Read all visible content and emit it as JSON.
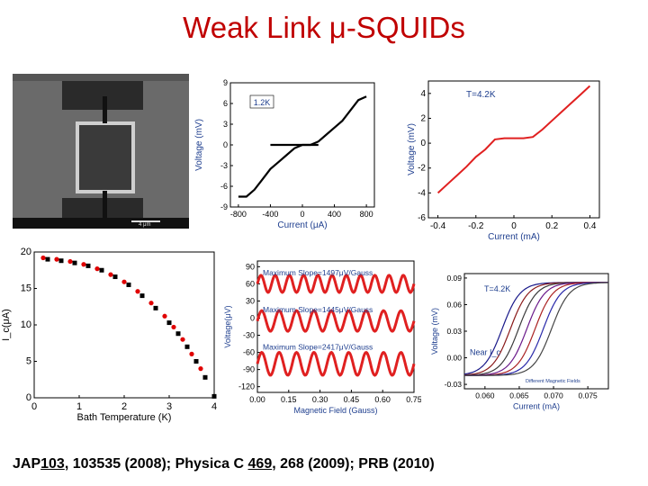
{
  "slide": {
    "title": "Weak Link μ-SQUIDs",
    "citation": {
      "part1": "JAP",
      "vol1": "103",
      "part2": ", 103535 (2008); Physica C ",
      "vol2": "469",
      "part3": ", 268 (2009); PRB (2010)"
    }
  },
  "sem_image": {
    "scale_bar_text": "4 μm"
  },
  "panels": [
    {
      "id": "iv-1.2K",
      "chart_data": {
        "type": "line",
        "legend": "1.2K",
        "xlabel": "Current (μA)",
        "ylabel": "Voltage (mV)",
        "xticks": [
          "-800",
          "-400",
          "0",
          "400",
          "800"
        ],
        "yticks": [
          "9",
          "6",
          "3",
          "0",
          "-3",
          "-6",
          "-9"
        ],
        "xlim": [
          -900,
          900
        ],
        "ylim": [
          -9,
          9
        ],
        "series": [
          {
            "x": [
              -800,
              -700,
              -600,
              -500,
              -400,
              -300,
              -200,
              -100,
              0,
              100,
              200,
              300,
              400,
              500,
              600,
              700,
              800
            ],
            "y": [
              -7.5,
              -7.5,
              -6.5,
              -5,
              -3.5,
              -2.5,
              -1.5,
              -0.5,
              0,
              0,
              0.5,
              1.5,
              2.5,
              3.5,
              5,
              6.5,
              7
            ]
          }
        ],
        "hline_y": 0
      }
    },
    {
      "id": "iv-4.2K",
      "chart_data": {
        "type": "line",
        "legend": "T=4.2K",
        "xlabel": "Current (mA)",
        "ylabel": "Voltage (mV)",
        "xticks": [
          "-0.4",
          "-0.2",
          "0",
          "0.2",
          "0.4"
        ],
        "yticks": [
          "4",
          "2",
          "0",
          "-2",
          "-4",
          "-6"
        ],
        "xlim": [
          -0.45,
          0.45
        ],
        "ylim": [
          -6,
          5
        ],
        "series": [
          {
            "x": [
              -0.4,
              -0.35,
              -0.3,
              -0.25,
              -0.2,
              -0.15,
              -0.1,
              -0.05,
              0,
              0.05,
              0.1,
              0.15,
              0.2,
              0.25,
              0.3,
              0.35,
              0.4
            ],
            "y": [
              -4,
              -3.3,
              -2.6,
              -1.9,
              -1.1,
              -0.5,
              0.3,
              0.4,
              0.4,
              0.4,
              0.5,
              1.1,
              1.8,
              2.5,
              3.2,
              3.9,
              4.6
            ]
          }
        ]
      }
    },
    {
      "id": "ic-vs-temperature",
      "chart_data": {
        "type": "scatter",
        "xlabel": "Bath Temperature (K)",
        "ylabel": "I_c(μA)",
        "xticks": [
          "0",
          "1",
          "2",
          "3",
          "4"
        ],
        "yticks": [
          "20",
          "15",
          "10",
          "5",
          "0"
        ],
        "xlim": [
          0,
          4
        ],
        "ylim": [
          0,
          20
        ],
        "series": [
          {
            "name": "",
            "color": "#000000",
            "x": [
              0.3,
              0.6,
              0.9,
              1.2,
              1.5,
              1.8,
              2.1,
              2.4,
              2.7,
              3.0,
              3.2,
              3.4,
              3.6,
              3.8,
              4.0
            ],
            "y": [
              19,
              18.8,
              18.5,
              18.1,
              17.5,
              16.6,
              15.5,
              14,
              12.3,
              10.3,
              8.8,
              7.0,
              5.0,
              2.8,
              0.2
            ]
          },
          {
            "name": "",
            "color": "#e00000",
            "x": [
              0.2,
              0.5,
              0.8,
              1.1,
              1.4,
              1.7,
              2.0,
              2.3,
              2.6,
              2.9,
              3.1,
              3.3,
              3.5,
              3.7
            ],
            "y": [
              19.2,
              19.0,
              18.7,
              18.3,
              17.7,
              16.9,
              15.9,
              14.6,
              13.0,
              11.2,
              9.7,
              8.0,
              6.0,
              4.0
            ]
          }
        ]
      }
    },
    {
      "id": "squid-modulation",
      "chart_data": {
        "type": "line",
        "xlabel": "Magnetic Field (Gauss)",
        "ylabel": "Voltage(μV)",
        "xticks": [
          "0.00",
          "0.15",
          "0.30",
          "0.45",
          "0.60",
          "0.75"
        ],
        "yticks": [
          "90",
          "60",
          "30",
          "0",
          "-30",
          "-60",
          "-90",
          "-120"
        ],
        "xlim": [
          0,
          0.75
        ],
        "ylim": [
          -130,
          100
        ],
        "annotations": [
          "Maximum Slope=1497μV/Gauss",
          "Maximum Slope=1445μV/Gauss",
          "Maximum Slope=2417μV/Gauss"
        ],
        "series": [
          {
            "name": "",
            "center": 60,
            "amplitude": 15,
            "periods": 11
          },
          {
            "name": "",
            "center": -5,
            "amplitude": 18,
            "periods": 9
          },
          {
            "name": "",
            "center": -80,
            "amplitude": 20,
            "periods": 9
          }
        ]
      }
    },
    {
      "id": "iv-field",
      "chart_data": {
        "type": "line",
        "legend": "T=4.2K",
        "xlabel": "Current (mA)",
        "ylabel": "Voltage (mV)",
        "xticks": [
          "0.060",
          "0.065",
          "0.070",
          "0.075"
        ],
        "yticks": [
          "0.09",
          "0.06",
          "0.03",
          "0.00",
          "-0.03"
        ],
        "xlim": [
          0.057,
          0.078
        ],
        "ylim": [
          -0.035,
          0.095
        ],
        "annotations": [
          "Near I_c",
          "Different Magnetic Fields"
        ]
      }
    }
  ]
}
